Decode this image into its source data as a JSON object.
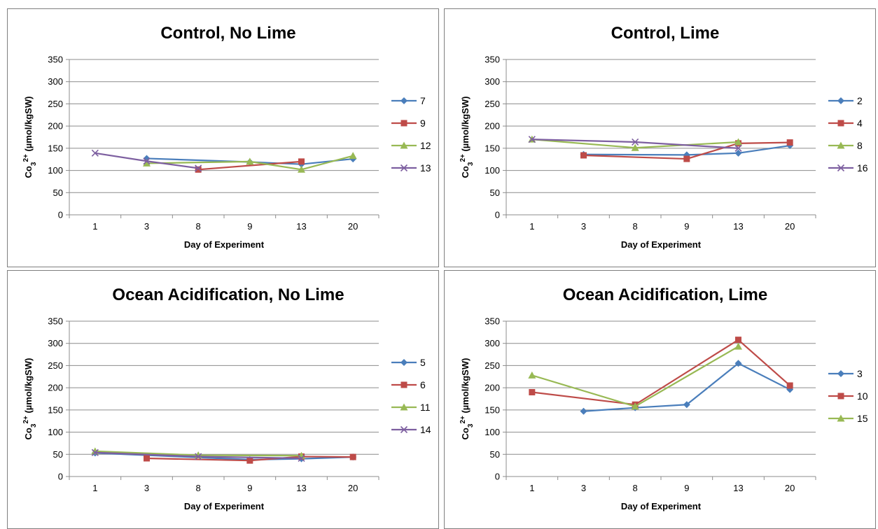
{
  "chart_data": [
    {
      "type": "line",
      "title": "Control, No Lime",
      "xlabel": "Day of Experiment",
      "ylabel": "Co3²⁺ (µmol/kgSW)",
      "ylabel_parts": {
        "pre": "Co",
        "sub": "3",
        "sup": "2+",
        "post": " (µmol/kgSW)"
      },
      "categories": [
        "1",
        "3",
        "8",
        "9",
        "13",
        "20"
      ],
      "ylim": [
        0,
        350
      ],
      "yticks": [
        0,
        50,
        100,
        150,
        200,
        250,
        300,
        350
      ],
      "grid": true,
      "legend_position": "right",
      "series": [
        {
          "name": "7",
          "color": "#4a7ebb",
          "marker": "diamond",
          "values": [
            null,
            127,
            null,
            119,
            114,
            126
          ]
        },
        {
          "name": "9",
          "color": "#be4b48",
          "marker": "square",
          "values": [
            null,
            null,
            102,
            null,
            120,
            null
          ]
        },
        {
          "name": "12",
          "color": "#98b954",
          "marker": "triangle",
          "values": [
            null,
            116,
            null,
            120,
            102,
            133
          ]
        },
        {
          "name": "13",
          "color": "#7d5fa0",
          "marker": "x",
          "values": [
            139,
            121,
            105,
            null,
            null,
            null
          ]
        }
      ]
    },
    {
      "type": "line",
      "title": "Control, Lime",
      "xlabel": "Day of Experiment",
      "ylabel": "Co3²⁺ (µmol/kgSW)",
      "ylabel_parts": {
        "pre": "Co",
        "sub": "3",
        "sup": "2+",
        "post": " (µmol/kgSW)"
      },
      "categories": [
        "1",
        "3",
        "8",
        "9",
        "13",
        "20"
      ],
      "ylim": [
        0,
        350
      ],
      "yticks": [
        0,
        50,
        100,
        150,
        200,
        250,
        300,
        350
      ],
      "grid": true,
      "legend_position": "right",
      "series": [
        {
          "name": "2",
          "color": "#4a7ebb",
          "marker": "diamond",
          "values": [
            null,
            136,
            null,
            135,
            139,
            156
          ]
        },
        {
          "name": "4",
          "color": "#be4b48",
          "marker": "square",
          "values": [
            null,
            134,
            null,
            126,
            161,
            163
          ]
        },
        {
          "name": "8",
          "color": "#98b954",
          "marker": "triangle",
          "values": [
            170,
            null,
            151,
            null,
            164,
            null
          ]
        },
        {
          "name": "16",
          "color": "#7d5fa0",
          "marker": "x",
          "values": [
            170,
            null,
            164,
            null,
            150,
            null
          ]
        }
      ]
    },
    {
      "type": "line",
      "title": "Ocean Acidification, No Lime",
      "xlabel": "Day of Experiment",
      "ylabel": "Co3²⁺ (µmol/kgSW)",
      "ylabel_parts": {
        "pre": "Co",
        "sub": "3",
        "sup": "2+",
        "post": " (µmol/kgSW)"
      },
      "categories": [
        "1",
        "3",
        "8",
        "9",
        "13",
        "20"
      ],
      "ylim": [
        0,
        350
      ],
      "yticks": [
        0,
        50,
        100,
        150,
        200,
        250,
        300,
        350
      ],
      "grid": true,
      "legend_position": "right",
      "series": [
        {
          "name": "5",
          "color": "#4a7ebb",
          "marker": "diamond",
          "values": [
            53,
            null,
            null,
            38,
            40,
            44
          ]
        },
        {
          "name": "6",
          "color": "#be4b48",
          "marker": "square",
          "values": [
            null,
            41,
            null,
            36,
            45,
            44
          ]
        },
        {
          "name": "11",
          "color": "#98b954",
          "marker": "triangle",
          "values": [
            57,
            null,
            48,
            null,
            47,
            null
          ]
        },
        {
          "name": "14",
          "color": "#7d5fa0",
          "marker": "x",
          "values": [
            54,
            null,
            45,
            null,
            41,
            null
          ]
        }
      ]
    },
    {
      "type": "line",
      "title": "Ocean Acidification, Lime",
      "xlabel": "Day of Experiment",
      "ylabel": "Co3²⁺ (µmol/kgSW)",
      "ylabel_parts": {
        "pre": "Co",
        "sub": "3",
        "sup": "2+",
        "post": " (µmol/kgSW)"
      },
      "categories": [
        "1",
        "3",
        "8",
        "9",
        "13",
        "20"
      ],
      "ylim": [
        0,
        350
      ],
      "yticks": [
        0,
        50,
        100,
        150,
        200,
        250,
        300,
        350
      ],
      "grid": true,
      "legend_position": "right",
      "series": [
        {
          "name": "3",
          "color": "#4a7ebb",
          "marker": "diamond",
          "values": [
            null,
            147,
            155,
            162,
            255,
            196
          ]
        },
        {
          "name": "10",
          "color": "#be4b48",
          "marker": "square",
          "values": [
            190,
            null,
            162,
            null,
            308,
            205
          ]
        },
        {
          "name": "15",
          "color": "#98b954",
          "marker": "triangle",
          "values": [
            228,
            null,
            158,
            null,
            293,
            null
          ]
        }
      ]
    }
  ]
}
